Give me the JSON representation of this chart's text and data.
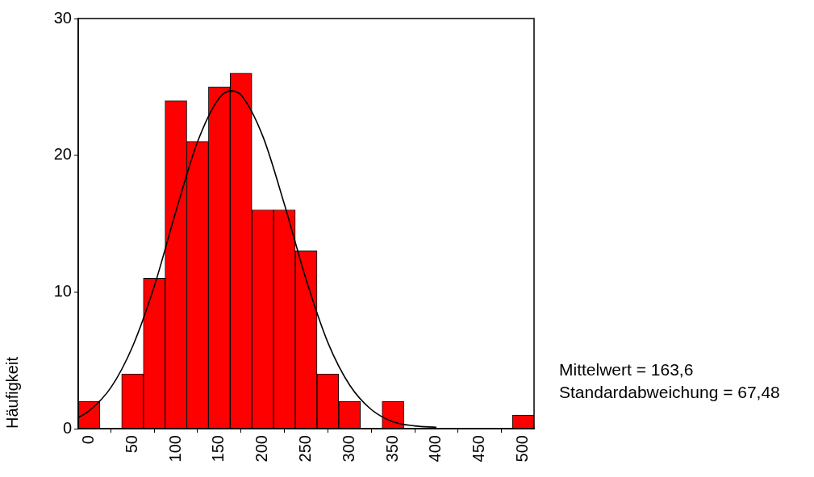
{
  "chart_data": {
    "type": "histogram",
    "ylabel": "Häufigkeit",
    "bins": [
      -12.5,
      12.5,
      37.5,
      62.5,
      87.5,
      112.5,
      137.5,
      162.5,
      187.5,
      212.5,
      237.5,
      262.5,
      287.5,
      312.5,
      337.5,
      362.5,
      387.5,
      412.5,
      437.5,
      462.5,
      487.5,
      512.5
    ],
    "values": [
      2,
      0,
      4,
      11,
      24,
      21,
      25,
      26,
      16,
      16,
      13,
      4,
      2,
      0,
      2,
      0,
      0,
      0,
      0,
      0,
      1
    ],
    "color": "#ff0000",
    "series": [
      {
        "type": "line",
        "color": "#000000",
        "x": [
          -12.5,
          0,
          25,
          50,
          75,
          100,
          125,
          150,
          163.6,
          175,
          200,
          225,
          250,
          275,
          300,
          325,
          350,
          375,
          400
        ],
        "values": [
          0.8,
          1.3,
          3.0,
          6.0,
          10.4,
          15.9,
          21.0,
          24.2,
          24.7,
          24.4,
          21.4,
          16.4,
          10.9,
          6.3,
          3.2,
          1.4,
          0.5,
          0.2,
          0.1
        ]
      }
    ],
    "xlim": [
      -12.5,
      512.5
    ],
    "xticks": [
      0,
      50,
      100,
      150,
      200,
      250,
      300,
      350,
      400,
      450,
      500
    ],
    "ylim": [
      0,
      30
    ],
    "yticks": [
      0,
      10,
      20,
      30
    ],
    "grid": false,
    "legend": false,
    "marker": "none",
    "annotations": [
      "Mittelwert = 163,6",
      "Standardabweichung = 67,48"
    ]
  }
}
